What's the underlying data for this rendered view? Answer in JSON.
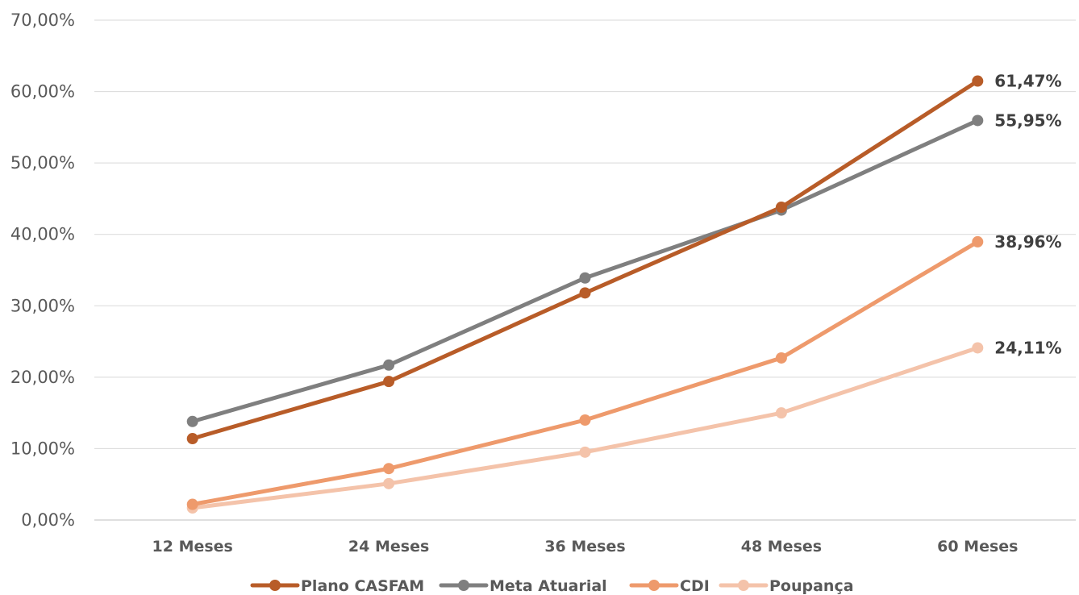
{
  "chart_data": {
    "type": "line",
    "categories": [
      "12 Meses",
      "24 Meses",
      "36 Meses",
      "48 Meses",
      "60 Meses"
    ],
    "series": [
      {
        "name": "Plano CASFAM",
        "color": "#B85C28",
        "values": [
          11.4,
          19.4,
          31.8,
          43.8,
          61.47
        ],
        "end_label": "61,47%"
      },
      {
        "name": "Meta Atuarial",
        "color": "#7F7F7F",
        "values": [
          13.8,
          21.7,
          33.9,
          43.4,
          55.95
        ],
        "end_label": "55,95%"
      },
      {
        "name": "CDI",
        "color": "#EE9A6C",
        "values": [
          2.2,
          7.2,
          14.0,
          22.7,
          38.96
        ],
        "end_label": "38,96%"
      },
      {
        "name": "Poupança",
        "color": "#F4C3AA",
        "values": [
          1.7,
          5.1,
          9.5,
          15.0,
          24.11
        ],
        "end_label": "24,11%"
      }
    ],
    "y_ticks": [
      "0,00%",
      "10,00%",
      "20,00%",
      "30,00%",
      "40,00%",
      "50,00%",
      "60,00%",
      "70,00%"
    ],
    "ylim": [
      0,
      70
    ],
    "grid": true,
    "legend": "bottom",
    "title": "",
    "xlabel": "",
    "ylabel": ""
  }
}
